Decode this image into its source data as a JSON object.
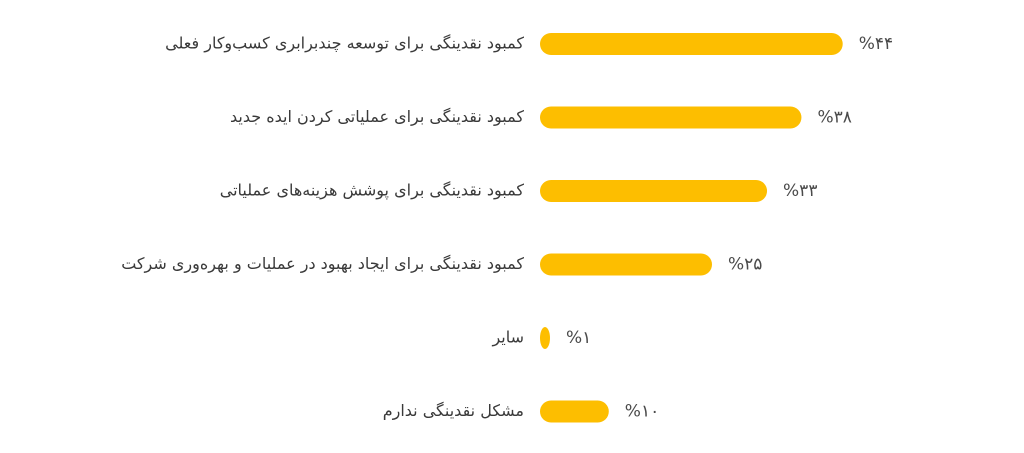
{
  "chart_data": {
    "type": "bar",
    "orientation": "horizontal",
    "categories": [
      "کمبود نقدینگی برای توسعه چندبرابری کسب‌وکار فعلی",
      "کمبود نقدینگی برای عملیاتی کردن ایده جدید",
      "کمبود نقدینگی برای پوشش هزینه‌های عملیاتی",
      "کمبود نقدینگی برای ایجاد بهبود در عملیات و بهره‌وری شرکت",
      "سایر",
      "مشکل نقدینگی ندارم"
    ],
    "values": [
      44,
      38,
      33,
      25,
      1,
      10
    ],
    "value_labels": [
      "%۴۴",
      "%۳۸",
      "%۳۳",
      "%۲۵",
      "%۱",
      "%۱۰"
    ],
    "unit": "%",
    "xlim": [
      0,
      50
    ],
    "bar_color": "#FDBE00",
    "grid": false,
    "legend": "none"
  }
}
